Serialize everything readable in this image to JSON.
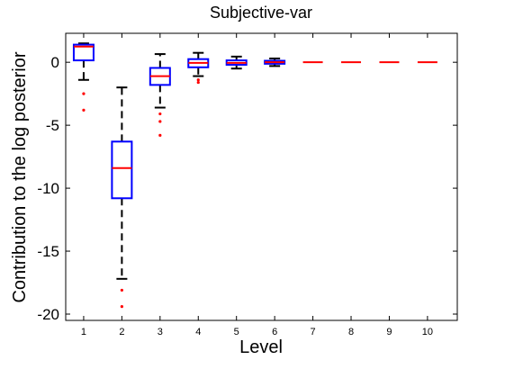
{
  "chart_data": {
    "type": "box",
    "title": "Subjective-var",
    "xlabel": "Level",
    "ylabel": "Contribution to the log posterior",
    "categories": [
      "1",
      "2",
      "3",
      "4",
      "5",
      "6",
      "7",
      "8",
      "9",
      "10"
    ],
    "ylim": [
      -20.5,
      2.3
    ],
    "yticks": [
      0,
      -5,
      -10,
      -15,
      -20
    ],
    "ytick_labels": [
      "0",
      "-5",
      "-10",
      "-15",
      "-20"
    ],
    "grid": false,
    "boxes": [
      {
        "level": "1",
        "whisker_low": -1.4,
        "q1": 0.15,
        "median": 1.25,
        "q3": 1.4,
        "whisker_high": 1.5,
        "outliers": [
          -2.5,
          -3.8
        ]
      },
      {
        "level": "2",
        "whisker_low": -17.2,
        "q1": -10.8,
        "median": -8.4,
        "q3": -6.3,
        "whisker_high": -2.0,
        "outliers": [
          -18.1,
          -19.4
        ]
      },
      {
        "level": "3",
        "whisker_low": -3.6,
        "q1": -1.8,
        "median": -1.1,
        "q3": -0.45,
        "whisker_high": 0.65,
        "outliers": [
          -4.1,
          -4.7,
          -5.8
        ]
      },
      {
        "level": "4",
        "whisker_low": -1.1,
        "q1": -0.4,
        "median": -0.05,
        "q3": 0.25,
        "whisker_high": 0.75,
        "outliers": [
          -1.4,
          -1.6
        ]
      },
      {
        "level": "5",
        "whisker_low": -0.5,
        "q1": -0.2,
        "median": -0.05,
        "q3": 0.15,
        "whisker_high": 0.45,
        "outliers": []
      },
      {
        "level": "6",
        "whisker_low": -0.3,
        "q1": -0.12,
        "median": 0.0,
        "q3": 0.12,
        "whisker_high": 0.3,
        "outliers": []
      },
      {
        "level": "7",
        "whisker_low": 0,
        "q1": 0,
        "median": 0,
        "q3": 0,
        "whisker_high": 0,
        "outliers": []
      },
      {
        "level": "8",
        "whisker_low": 0,
        "q1": 0,
        "median": 0,
        "q3": 0,
        "whisker_high": 0,
        "outliers": []
      },
      {
        "level": "9",
        "whisker_low": 0,
        "q1": 0,
        "median": 0,
        "q3": 0,
        "whisker_high": 0,
        "outliers": []
      },
      {
        "level": "10",
        "whisker_low": 0,
        "q1": 0,
        "median": 0,
        "q3": 0,
        "whisker_high": 0,
        "outliers": []
      }
    ],
    "colors": {
      "box": "#0000ff",
      "median": "#ff0000",
      "whisker": "#000000",
      "outlier": "#ff0000",
      "axes": "#000000"
    }
  }
}
